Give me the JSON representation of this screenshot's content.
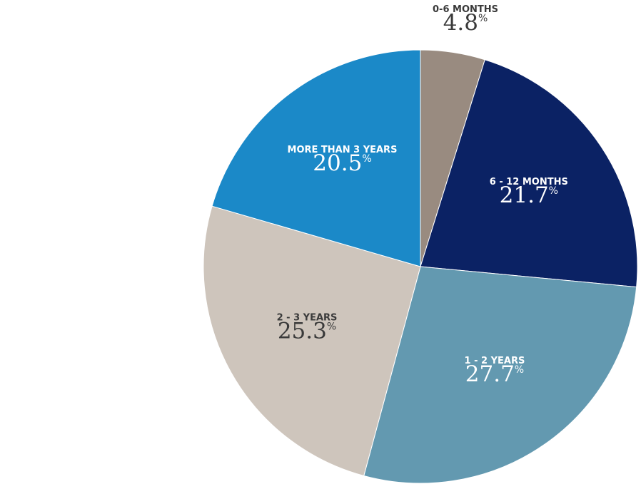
{
  "chart_data": {
    "type": "pie",
    "categories": [
      "0-6 MONTHS",
      "6 - 12 MONTHS",
      "1 - 2 YEARS",
      "2 - 3 YEARS",
      "MORE THAN 3 YEARS"
    ],
    "values": [
      4.8,
      21.7,
      27.7,
      25.3,
      20.5
    ],
    "colors": [
      "#998b80",
      "#0b2264",
      "#6399b0",
      "#cec5bc",
      "#1b89c8"
    ],
    "unit": "%"
  }
}
